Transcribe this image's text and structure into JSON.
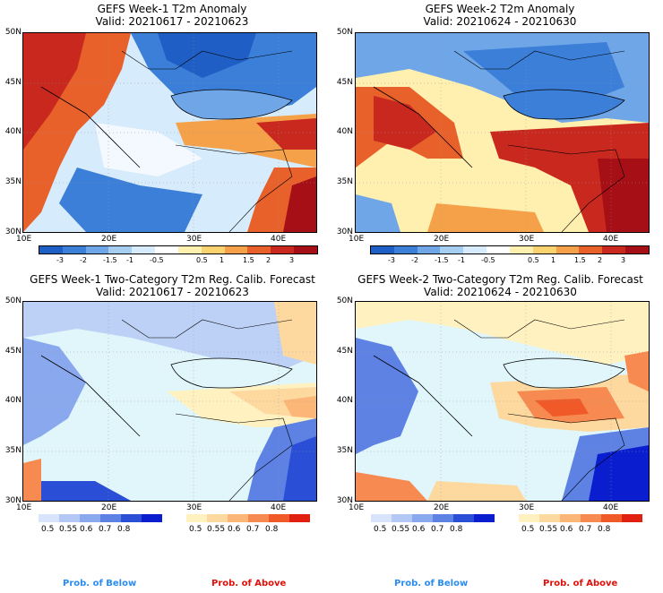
{
  "panels": [
    {
      "title1": "GEFS Week-1 T2m Anomaly",
      "title2": "Valid: 20210617 - 20210623"
    },
    {
      "title1": "GEFS Week-2 T2m Anomaly",
      "title2": "Valid: 20210624 - 20210630"
    },
    {
      "title1": "GEFS Week-1 Two-Category T2m Reg. Calib. Forecast",
      "title2": "Valid: 20210617 - 20210623"
    },
    {
      "title1": "GEFS Week-2 Two-Category T2m Reg. Calib. Forecast",
      "title2": "Valid: 20210624 - 20210630"
    }
  ],
  "lat_labels": [
    "50N",
    "45N",
    "40N",
    "35N",
    "30N"
  ],
  "lon_labels": [
    "10E",
    "20E",
    "30E",
    "40E"
  ],
  "anomaly_ticks": [
    "-3",
    "-2",
    "-1.5",
    "-1",
    "-0.5",
    "0.5",
    "1",
    "1.5",
    "2",
    "3"
  ],
  "anomaly_colors": [
    "#1f5ec4",
    "#3b7fd8",
    "#6fa6e8",
    "#a6cdf2",
    "#d6ebfb",
    "#ffffff",
    "#fff0b0",
    "#fbd270",
    "#f5a14a",
    "#e8602a",
    "#c8281e",
    "#a50f15"
  ],
  "prob_ticks": [
    "0.5",
    "0.55",
    "0.6",
    "0.7",
    "0.8"
  ],
  "prob_below_colors": [
    "#d8e4fb",
    "#b4c8f5",
    "#8aa8ee",
    "#5e82e4",
    "#2a4fd6",
    "#0a1ed0"
  ],
  "prob_above_colors": [
    "#fff2c0",
    "#fdd9a0",
    "#fbb678",
    "#f78a50",
    "#f05a28",
    "#e02010"
  ],
  "legend": {
    "below": "Prob. of Below",
    "above": "Prob. of Above",
    "below_color": "#2b8cf0",
    "above_color": "#e0100a"
  }
}
